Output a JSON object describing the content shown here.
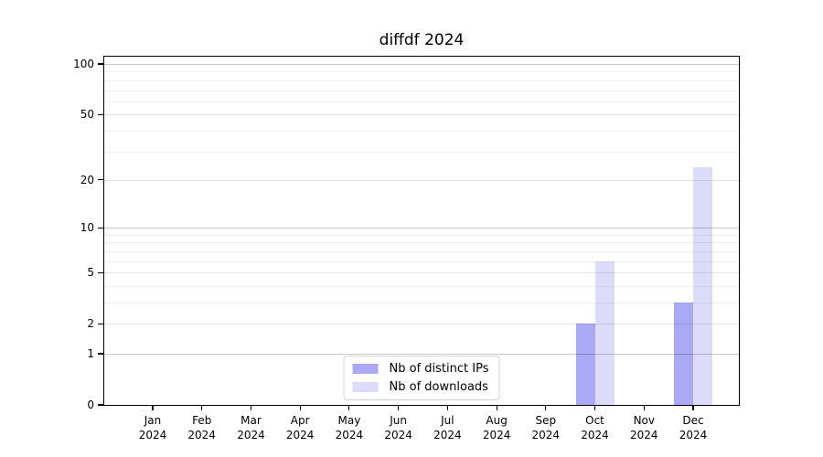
{
  "title": "diffdf 2024",
  "chart_data": {
    "type": "bar",
    "title": "diffdf 2024",
    "categories": [
      "Jan",
      "Feb",
      "Mar",
      "Apr",
      "May",
      "Jun",
      "Jul",
      "Aug",
      "Sep",
      "Oct",
      "Nov",
      "Dec"
    ],
    "x_year": "2024",
    "series": [
      {
        "name": "Nb of distinct IPs",
        "color": "#a9a9f6",
        "values": [
          0,
          0,
          0,
          0,
          0,
          0,
          0,
          0,
          0,
          2,
          0,
          3
        ]
      },
      {
        "name": "Nb of downloads",
        "color": "#dcdcfa",
        "values": [
          0,
          0,
          0,
          0,
          0,
          0,
          0,
          0,
          0,
          6,
          0,
          24
        ]
      }
    ],
    "y_scale": "log1p",
    "y_ticks": [
      0,
      1,
      2,
      5,
      10,
      20,
      50,
      100
    ],
    "y_major_gridlines": [
      1,
      10,
      100
    ],
    "y_minor_gridlines": [
      3,
      4,
      6,
      7,
      8,
      9,
      30,
      40,
      60,
      70,
      80,
      90
    ],
    "ylim": [
      0,
      110
    ],
    "grid": true,
    "legend_position": "bottom-center",
    "colors": {
      "grid_major": "#c9c9c9",
      "grid_minor": "#efefef",
      "axis": "#000000",
      "background": "#ffffff"
    }
  }
}
